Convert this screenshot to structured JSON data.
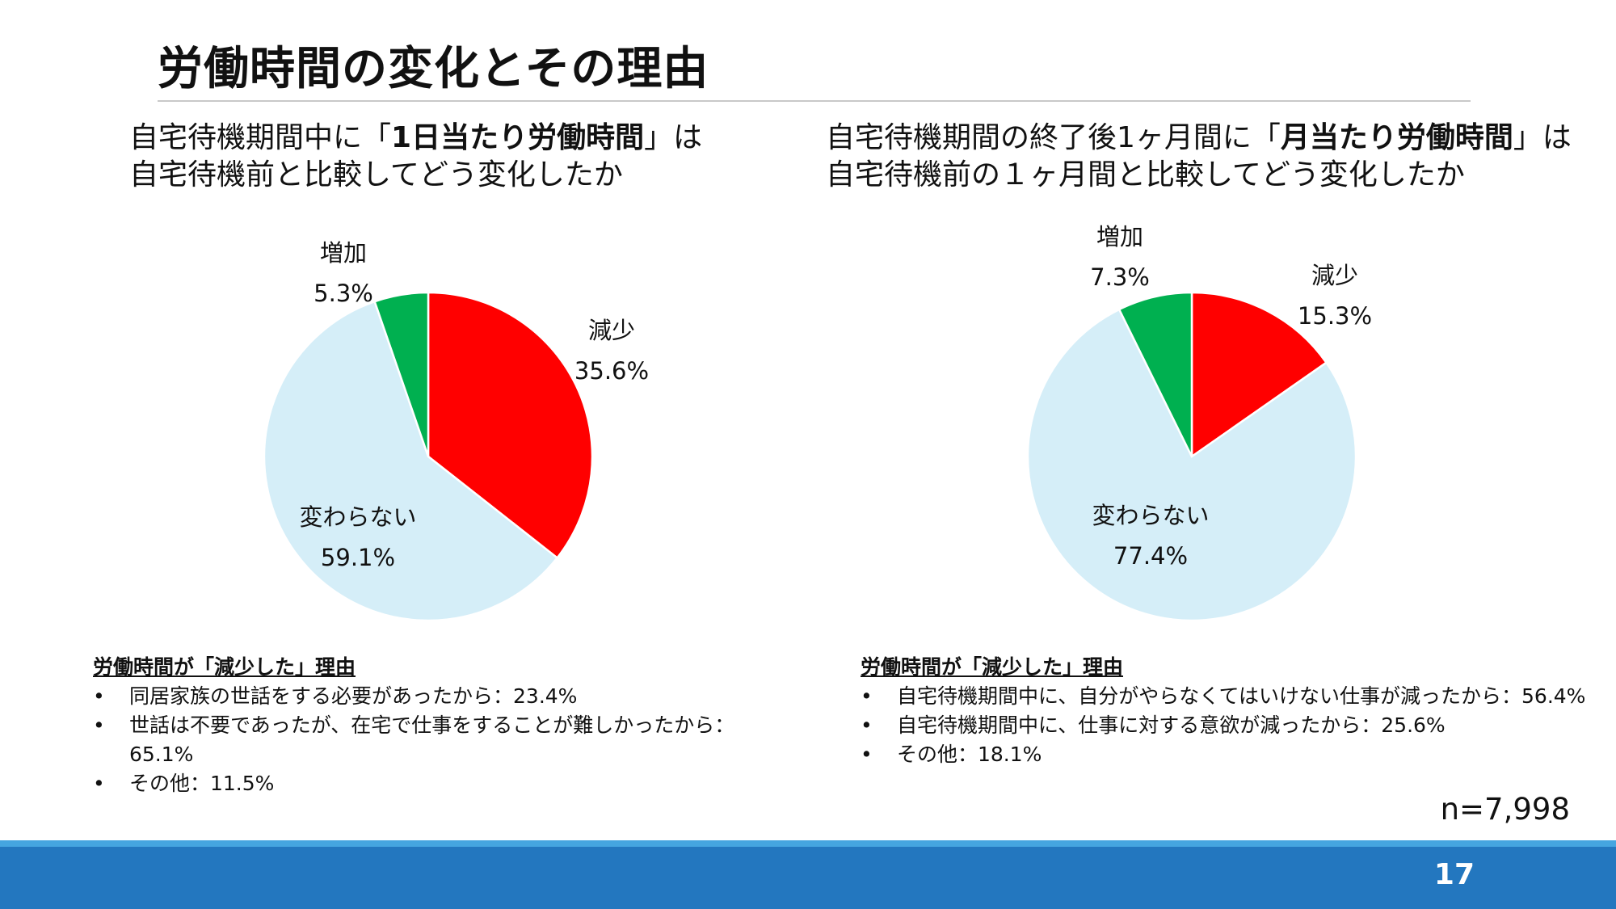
{
  "title": "労働時間の変化とその理由",
  "left": {
    "subtitle_line1_pre": "自宅待機期間中に「",
    "subtitle_line1_bold": "1日当たり労働時間",
    "subtitle_line1_post": "」は",
    "subtitle_line2": "自宅待機前と比較してどう変化したか",
    "reasons_heading": "労働時間が「減少した」理由",
    "reasons": [
      "同居家族の世話をする必要があったから：23.4%",
      "世話は不要であったが、在宅で仕事をすることが難しかったから：65.1%",
      "その他：11.5%"
    ]
  },
  "right": {
    "subtitle_line1_pre": "自宅待機期間の終了後1ヶ月間に「",
    "subtitle_line1_bold": "月当たり労働時間",
    "subtitle_line1_post": "」は",
    "subtitle_line2": "自宅待機前の１ヶ月間と比較してどう変化したか",
    "reasons_heading": "労働時間が「減少した」理由",
    "reasons": [
      "自宅待機期間中に、自分がやらなくてはいけない仕事が減ったから：56.4%",
      "自宅待機期間中に、仕事に対する意欲が減ったから：25.6%",
      "その他：18.1%"
    ]
  },
  "bullet": "•",
  "sample_size": "n=7,998",
  "page_number": "17",
  "colors": {
    "decrease": "#ff0000",
    "unchanged": "#d5eef8",
    "increase": "#00b050",
    "footer": "#2377bf",
    "footer_stripe": "#45a5e0"
  },
  "chart_data": [
    {
      "type": "pie",
      "slices": [
        {
          "label": "減少",
          "value": 35.6,
          "value_label": "35.6%",
          "color": "#ff0000"
        },
        {
          "label": "変わらない",
          "value": 59.1,
          "value_label": "59.1%",
          "color": "#d5eef8"
        },
        {
          "label": "増加",
          "value": 5.3,
          "value_label": "5.3%",
          "color": "#00b050"
        }
      ]
    },
    {
      "type": "pie",
      "slices": [
        {
          "label": "減少",
          "value": 15.3,
          "value_label": "15.3%",
          "color": "#ff0000"
        },
        {
          "label": "変わらない",
          "value": 77.4,
          "value_label": "77.4%",
          "color": "#d5eef8"
        },
        {
          "label": "増加",
          "value": 7.3,
          "value_label": "7.3%",
          "color": "#00b050"
        }
      ]
    }
  ]
}
